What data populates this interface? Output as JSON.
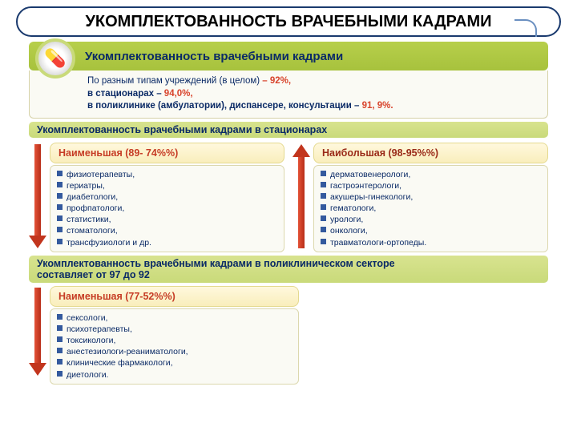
{
  "colors": {
    "title_border": "#1a3a6e",
    "band_green_a": "#b7cf4b",
    "band_green_b": "#a7c23d",
    "sub_band_a": "#d8e38f",
    "sub_band_b": "#c9da7a",
    "card_a": "#fff8dd",
    "card_b": "#f9eebc",
    "text_primary": "#0a2a66",
    "accent_red": "#c63c25",
    "accent_dark_red": "#9a2a18",
    "arrow_a": "#e45338",
    "arrow_b": "#b82e18"
  },
  "fontsizes": {
    "main_title": 20,
    "band": 15,
    "sub_band": 12.5,
    "card_title": 12.5,
    "paragraph": 11.5,
    "list": 10.5
  },
  "title": "УКОМПЛЕКТОВАННОСТЬ ВРАЧЕБНЫМИ КАДРАМИ",
  "band1": {
    "icon_label": "medicine-icon",
    "text": "Укомплектованность врачебными кадрами"
  },
  "paragraph": {
    "l1a": "По разным типам учреждений (в целом) ",
    "l1b": "– 92%,",
    "l2a": "в стационарах – ",
    "l2b": "94,0%,",
    "l3a": "в поликлинике (амбулатории), диспансере, консультации – ",
    "l3b": "91, 9%."
  },
  "sub1": "Укомплектованность врачебными кадрами в стационарах",
  "left": {
    "title": "Наименьшая (89- 74%%)",
    "items": [
      "физиотерапевты,",
      "гериатры,",
      "диабетологи,",
      "профпатологи,",
      "статистики,",
      "стоматологи,",
      "трансфузиологи и др."
    ]
  },
  "right": {
    "title": "Наибольшая (98-95%%)",
    "items": [
      "дерматовенерологи,",
      "гастроэнтерологи,",
      "акушеры-гинекологи,",
      "гематологи,",
      "урологи,",
      "онкологи,",
      "травматологи-ортопеды."
    ]
  },
  "sub2": {
    "a": "Укомплектованность врачебными кадрами в поликлиническом секторе",
    "b": "составляет от 97 до 92"
  },
  "bottom": {
    "title": "Наименьшая (77-52%%)",
    "items": [
      "сексологи,",
      "психотерапевты,",
      "токсикологи,",
      "анестезиологи-реаниматологи,",
      "клинические фармакологи,",
      "диетологи."
    ]
  }
}
